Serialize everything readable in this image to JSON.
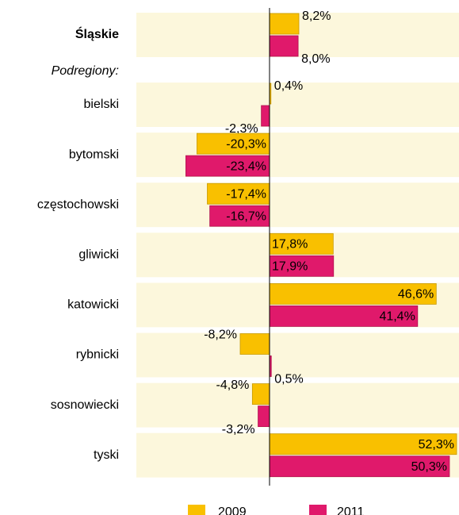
{
  "chart_data": {
    "type": "barh",
    "annotation": "Podregiony:",
    "categories": [
      "Śląskie",
      "bielski",
      "bytomski",
      "częstochowski",
      "gliwicki",
      "katowicki",
      "rybnicki",
      "sosnowiecki",
      "tyski"
    ],
    "series": [
      {
        "name": "2009",
        "color": "#f9c000",
        "values": [
          8.2,
          0.4,
          -20.3,
          -17.4,
          17.8,
          46.6,
          -8.2,
          -4.8,
          52.3
        ],
        "value_labels": [
          "8,2%",
          "0,4%",
          "-20,3%",
          "-17,4%",
          "17,8%",
          "46,6%",
          "-8,2%",
          "-4,8%",
          "52,3%"
        ]
      },
      {
        "name": "2011",
        "color": "#e0196b",
        "values": [
          8.0,
          -2.3,
          -23.4,
          -16.7,
          17.9,
          41.4,
          0.5,
          -3.2,
          50.3
        ],
        "value_labels": [
          "8,0%",
          "-2,3%",
          "-23,4%",
          "-16,7%",
          "17,9%",
          "41,4%",
          "0,5%",
          "-3,2%",
          "50,3%"
        ]
      }
    ]
  }
}
